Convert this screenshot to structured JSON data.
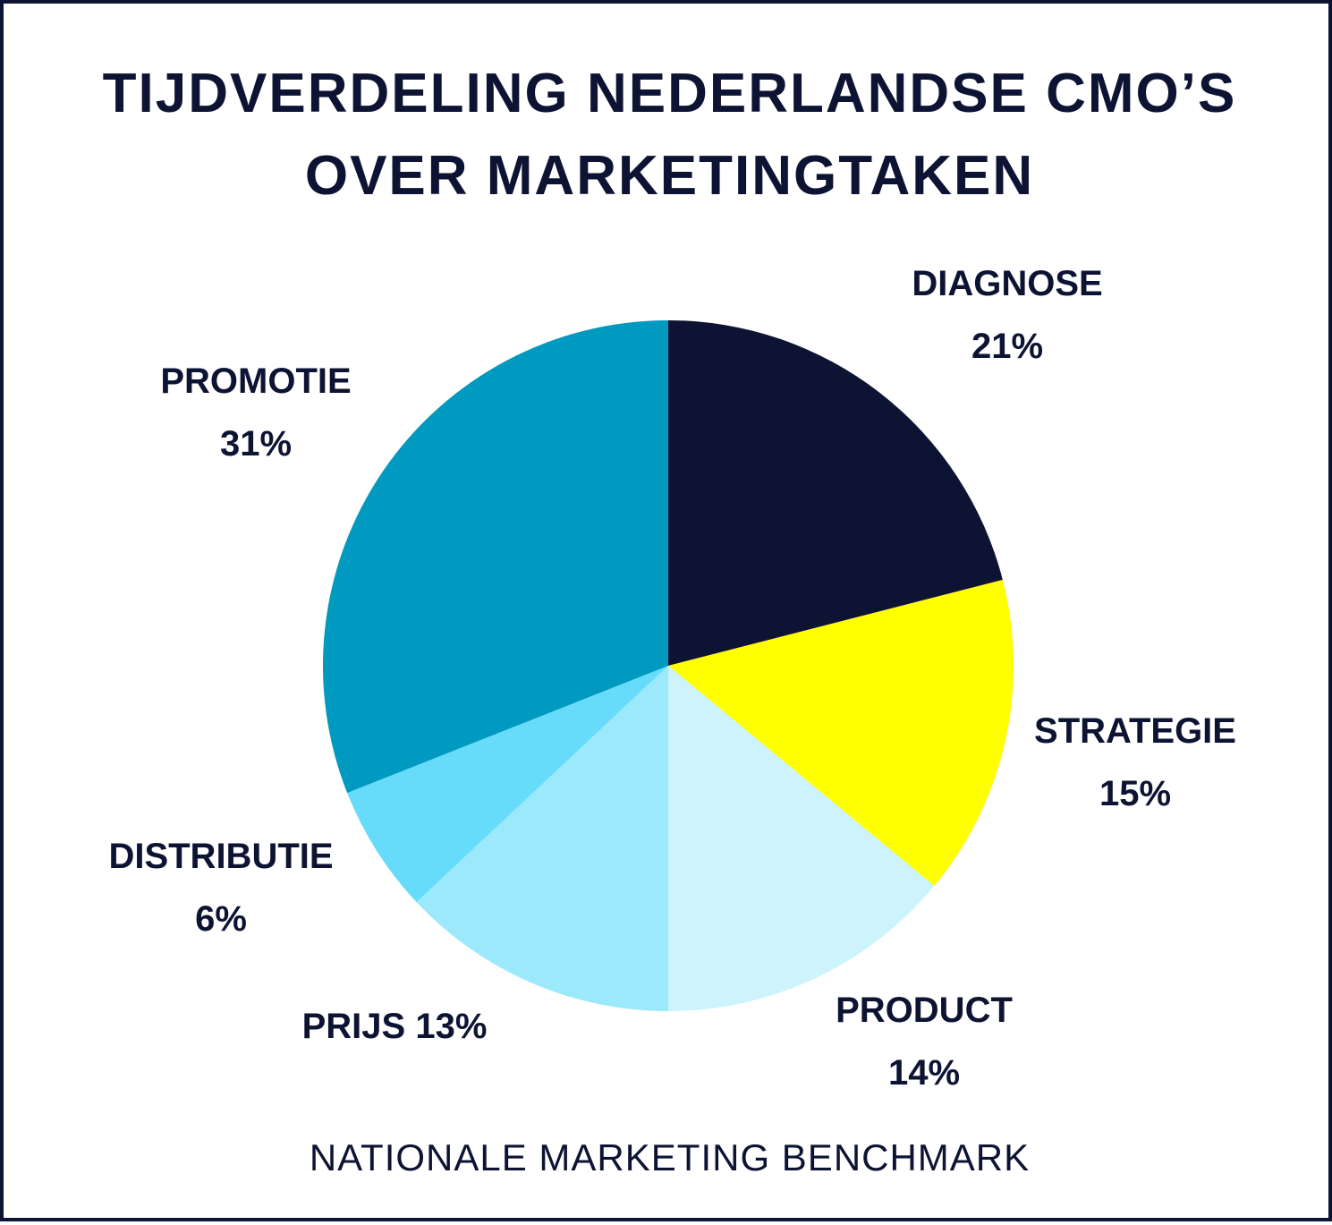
{
  "chart_data": {
    "type": "pie",
    "title_lines": [
      "TIJDVERDELING NEDERLANDSE CMO’S",
      "OVER MARKETINGTAKEN"
    ],
    "source": "NATIONALE MARKETING BENCHMARK",
    "slices": [
      {
        "name": "DIAGNOSE",
        "value": 21,
        "label": "21%",
        "color": "#0d1433"
      },
      {
        "name": "STRATEGIE",
        "value": 15,
        "label": "15%",
        "color": "#ffff00"
      },
      {
        "name": "PRODUCT",
        "value": 14,
        "label": "14%",
        "color": "#cdf3fc"
      },
      {
        "name": "PRIJS",
        "value": 13,
        "label": "13%",
        "color": "#9de9fc"
      },
      {
        "name": "DISTRIBUTIE",
        "value": 6,
        "label": "6%",
        "color": "#66dcfa"
      },
      {
        "name": "PROMOTIE",
        "value": 31,
        "label": "31%",
        "color": "#0099c0"
      }
    ]
  }
}
